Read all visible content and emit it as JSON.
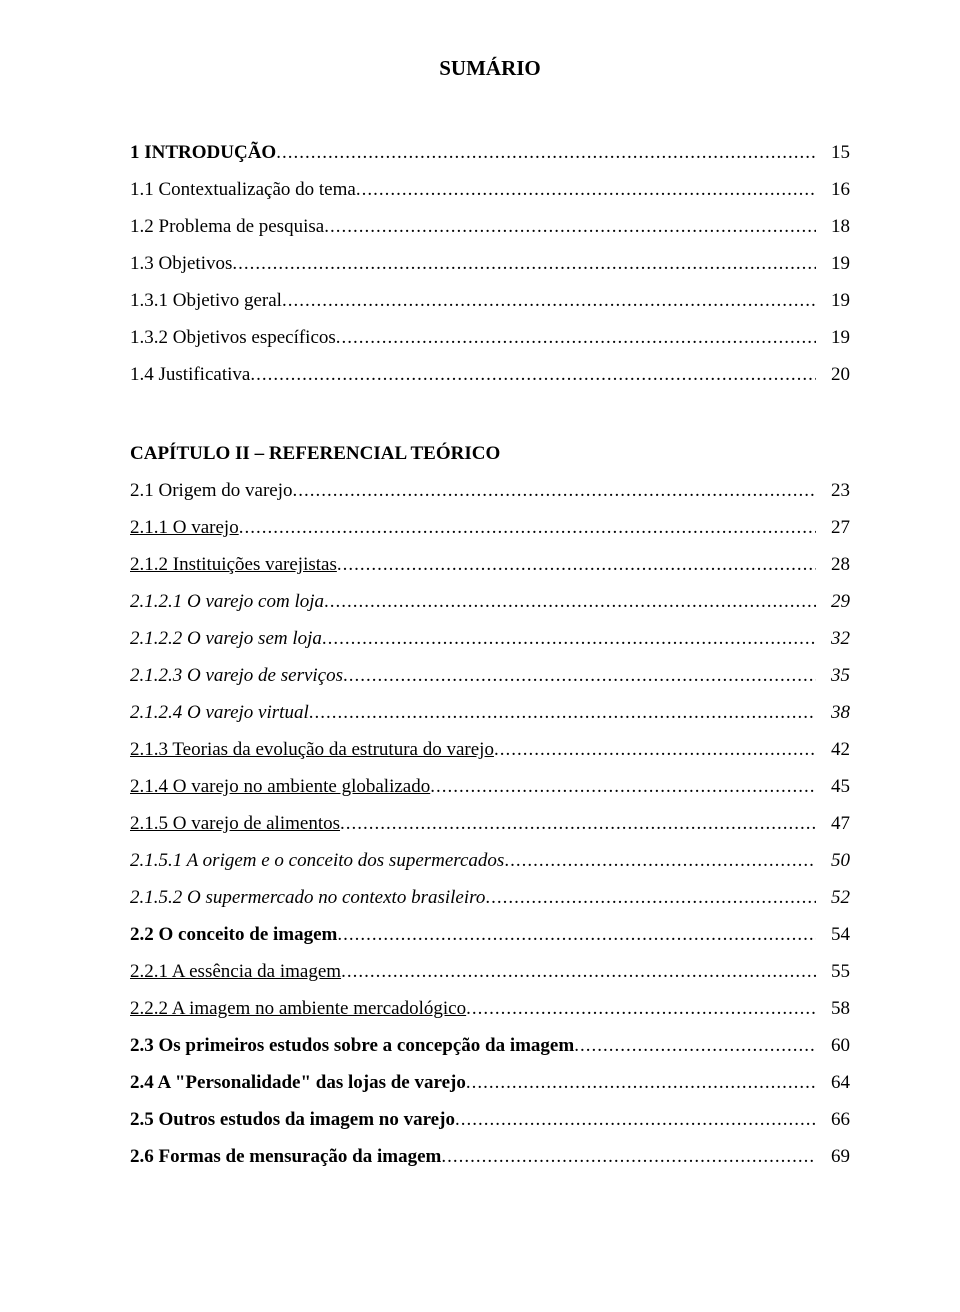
{
  "title": "SUMÁRIO",
  "colors": {
    "background": "#ffffff",
    "text": "#000000"
  },
  "typography": {
    "font_family": "Times New Roman",
    "title_fontsize_pt": 16,
    "body_fontsize_pt": 14
  },
  "toc": [
    {
      "label": "1 INTRODUÇÃO",
      "page": "15",
      "style": "bold",
      "gap_after": false
    },
    {
      "label": "1.1 Contextualização do tema",
      "page": "16",
      "style": "normal",
      "gap_after": false
    },
    {
      "label": "1.2 Problema de pesquisa",
      "page": "18",
      "style": "normal",
      "gap_after": false
    },
    {
      "label": "1.3 Objetivos",
      "page": "19",
      "style": "normal",
      "gap_after": false
    },
    {
      "label": "1.3.1 Objetivo geral",
      "page": "19",
      "style": "normal",
      "gap_after": false
    },
    {
      "label": "1.3.2 Objetivos específicos",
      "page": "19",
      "style": "normal",
      "gap_after": false
    },
    {
      "label": "1.4 Justificativa",
      "page": "20",
      "style": "normal",
      "gap_after": true
    },
    {
      "label": "CAPÍTULO II – REFERENCIAL TEÓRICO",
      "page": "",
      "style": "bold",
      "no_leader": true,
      "gap_after": false
    },
    {
      "label": "2.1 Origem do varejo",
      "page": "23",
      "style": "normal",
      "gap_after": false
    },
    {
      "label": "2.1.1 O varejo",
      "page": "27",
      "style": "underline",
      "gap_after": false
    },
    {
      "label": "2.1.2 Instituições varejistas",
      "page": "28",
      "style": "underline",
      "gap_after": false
    },
    {
      "label": "2.1.2.1 O varejo com loja",
      "page": "29",
      "style": "italic",
      "gap_after": false
    },
    {
      "label": "2.1.2.2 O varejo sem loja",
      "page": "32",
      "style": "italic",
      "gap_after": false
    },
    {
      "label": "2.1.2.3 O varejo de serviços",
      "page": "35",
      "style": "italic",
      "gap_after": false
    },
    {
      "label": "2.1.2.4 O varejo virtual",
      "page": "38",
      "style": "italic",
      "gap_after": false
    },
    {
      "label": "2.1.3 Teorias da evolução da estrutura do varejo",
      "page": "42",
      "style": "underline",
      "gap_after": false
    },
    {
      "label": "2.1.4 O varejo no ambiente globalizado",
      "page": "45",
      "style": "underline",
      "gap_after": false
    },
    {
      "label": "2.1.5 O varejo de alimentos",
      "page": "47",
      "style": "underline",
      "gap_after": false
    },
    {
      "label": "2.1.5.1 A origem e o conceito dos supermercados",
      "page": "50",
      "style": "italic",
      "gap_after": false
    },
    {
      "label": "2.1.5.2 O supermercado no contexto brasileiro",
      "page": "52",
      "style": "italic",
      "gap_after": false
    },
    {
      "label": "2.2 O conceito de imagem",
      "page": "54",
      "style": "bold",
      "gap_after": false
    },
    {
      "label": "2.2.1 A essência da imagem",
      "page": "55",
      "style": "underline",
      "gap_after": false
    },
    {
      "label": "2.2.2 A imagem no ambiente mercadológico",
      "page": "58",
      "style": "underline",
      "gap_after": false
    },
    {
      "label": "2.3 Os primeiros estudos sobre a concepção da imagem",
      "page": "60",
      "style": "bold",
      "gap_after": false
    },
    {
      "label": "2.4 A \"Personalidade\" das lojas de varejo",
      "page": "64",
      "style": "bold",
      "gap_after": false
    },
    {
      "label": "2.5 Outros estudos da imagem no varejo",
      "page": "66",
      "style": "bold",
      "gap_after": false
    },
    {
      "label": "2.6 Formas de mensuração da imagem",
      "page": "69",
      "style": "bold",
      "gap_after": false
    }
  ]
}
